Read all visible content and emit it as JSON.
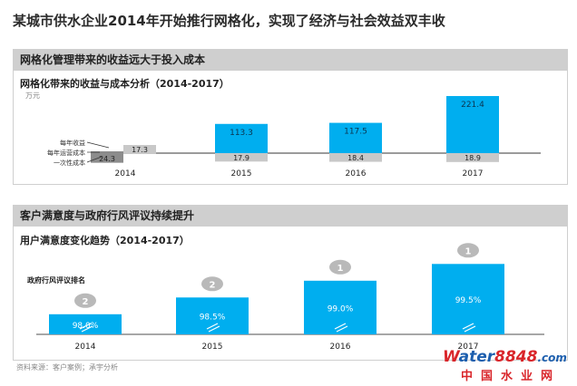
{
  "title": "某城市供水企业2014年开始推行网格化，实现了经济与社会效益双丰收",
  "section1": {
    "header": "网格化管理带来的收益远大于投入成本",
    "subtitle": "网格化带来的收益与成本分析（2014-2017）",
    "unit": "万元"
  },
  "section2": {
    "header": "客户满意度与政府行风评议持续提升",
    "subtitle": "用户满意度变化趋势（2014-2017）",
    "rank_label": "政府行风评议排名"
  },
  "chart_data": [
    {
      "type": "bar",
      "title": "网格化带来的收益与成本分析（2014-2017）",
      "ylabel": "万元",
      "categories": [
        "2014",
        "2015",
        "2016",
        "2017"
      ],
      "series": [
        {
          "name": "每年收益",
          "values": [
            null,
            113.3,
            117.5,
            221.4
          ]
        },
        {
          "name": "每年运营成本",
          "values": [
            17.3,
            17.9,
            18.4,
            18.9
          ]
        },
        {
          "name": "一次性成本",
          "values": [
            24.3,
            null,
            null,
            null
          ]
        }
      ],
      "legend": [
        "每年收益",
        "每年运营成本",
        "一次性成本"
      ],
      "labels": {
        "revenue": [
          "",
          "113.3",
          "117.5",
          "221.4"
        ],
        "op_cost": [
          "17.3",
          "17.9",
          "18.4",
          "18.9"
        ],
        "one_time": [
          "24.3",
          "",
          "",
          ""
        ]
      },
      "colors": {
        "revenue": "#00aeef",
        "op_cost": "#c8c8c8",
        "one_time": "#8c8c8c"
      }
    },
    {
      "type": "bar",
      "title": "用户满意度变化趋势（2014-2017）",
      "categories": [
        "2014",
        "2015",
        "2016",
        "2017"
      ],
      "values": [
        98.0,
        98.5,
        99.0,
        99.5
      ],
      "value_labels": [
        "98.0%",
        "98.5%",
        "99.0%",
        "99.5%"
      ],
      "ranks": [
        2,
        2,
        1,
        1
      ],
      "rank_labels": [
        "2",
        "2",
        "1",
        "1"
      ],
      "annotation": "政府行风评议排名",
      "color": "#00aeef"
    }
  ],
  "footer": "资料来源：客户案例；承宇分析",
  "watermark": {
    "brand_w": "W",
    "brand_ater": "ater",
    "brand_num": "8848",
    "brand_com": ".com",
    "cn": "中国水业网"
  }
}
